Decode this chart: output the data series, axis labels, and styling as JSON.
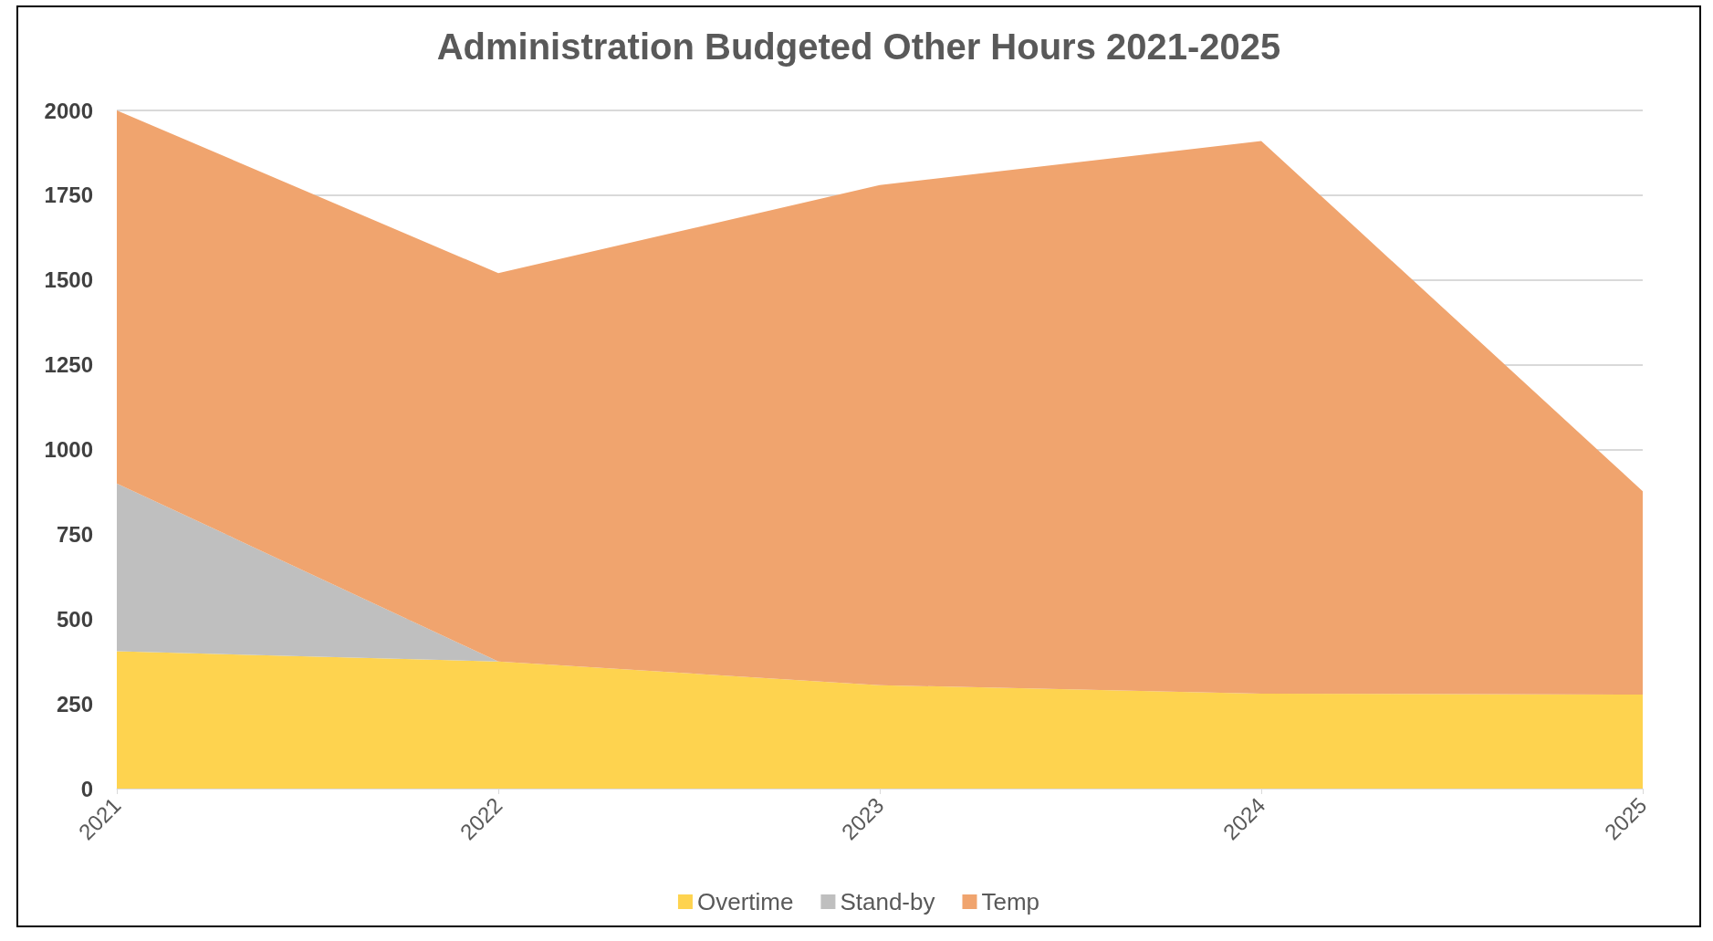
{
  "chart_data": {
    "type": "area",
    "title": "Administration Budgeted Other Hours 2021-2025",
    "categories": [
      "2021",
      "2022",
      "2023",
      "2024",
      "2025"
    ],
    "stacked": true,
    "series": [
      {
        "name": "Overtime",
        "color": "#fed34f",
        "values": [
          405,
          375,
          305,
          280,
          277
        ]
      },
      {
        "name": "Stand-by",
        "color": "#bfbfbf",
        "values": [
          495,
          0,
          0,
          0,
          0
        ]
      },
      {
        "name": "Temp",
        "color": "#f0a46e",
        "values": [
          1100,
          1145,
          1475,
          1630,
          600
        ]
      }
    ],
    "ylim": [
      0,
      2000
    ],
    "yticks": [
      0,
      250,
      500,
      750,
      1000,
      1250,
      1500,
      1750,
      2000
    ],
    "grid": "y",
    "legend": "bottom"
  }
}
